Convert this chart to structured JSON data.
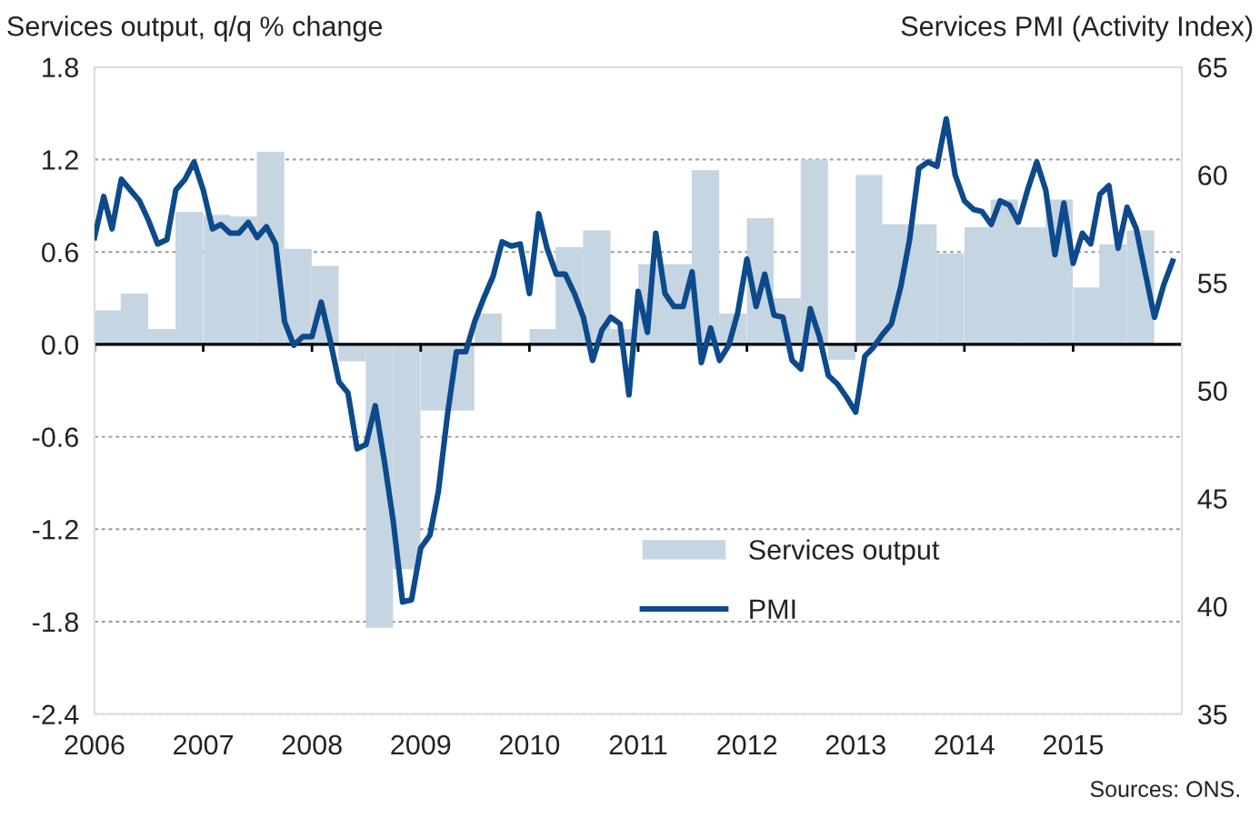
{
  "chart_data": {
    "type": "bar",
    "ylabel": "Services output, q/q % change",
    "y2label": "Services PMI (Activity Index)",
    "annotations": [
      "Sources: ONS."
    ],
    "xlim": [
      "2006-01",
      "2016-01"
    ],
    "xticks": [
      "2006",
      "2007",
      "2008",
      "2009",
      "2010",
      "2011",
      "2012",
      "2013",
      "2014",
      "2015"
    ],
    "ylim": [
      -2.4,
      1.8
    ],
    "yticks": [
      -2.4,
      -1.8,
      -1.2,
      -0.6,
      {
        "value": 0,
        "label": "0.0"
      },
      0.6,
      1.2,
      1.8
    ],
    "y2lim": [
      35,
      65
    ],
    "y2ticks": [
      35,
      40,
      45,
      50,
      55,
      60,
      65
    ],
    "grid": "y",
    "legend": "bottom right",
    "ref_lines": [
      {
        "axis": "y",
        "value": 0,
        "color": "#000000",
        "line_style": "solid"
      }
    ],
    "series": [
      {
        "name": "Services output",
        "color": "#c5d5e2",
        "x": [
          "2006-02-15",
          "2006-05-15",
          "2006-08-15",
          "2006-11-15",
          "2007-02-15",
          "2007-05-15",
          "2007-08-15",
          "2007-11-15",
          "2008-02-15",
          "2008-05-15",
          "2008-08-15",
          "2008-11-15",
          "2009-02-15",
          "2009-05-15",
          "2009-08-15",
          "2009-11-15",
          "2010-02-15",
          "2010-05-15",
          "2010-08-15",
          "2010-11-15",
          "2011-02-15",
          "2011-05-15",
          "2011-08-15",
          "2011-11-15",
          "2012-02-15",
          "2012-05-15",
          "2012-08-15",
          "2012-11-15",
          "2013-02-15",
          "2013-05-15",
          "2013-08-15",
          "2013-11-15",
          "2014-02-15",
          "2014-05-15",
          "2014-08-15",
          "2014-11-15",
          "2015-02-15",
          "2015-05-15",
          "2015-08-15"
        ],
        "values": [
          0.22,
          0.33,
          0.1,
          0.86,
          0.84,
          0.83,
          1.25,
          0.62,
          0.51,
          -0.11,
          -1.84,
          -1.46,
          -0.43,
          -0.43,
          0.2,
          0.0,
          0.1,
          0.63,
          0.74,
          0.1,
          0.52,
          0.52,
          1.13,
          0.2,
          0.82,
          0.3,
          1.2,
          -0.1,
          1.1,
          0.78,
          0.78,
          0.59,
          0.76,
          0.94,
          0.76,
          0.94,
          0.37,
          0.65,
          0.74
        ]
      },
      {
        "name": "PMI",
        "type": "line",
        "axis": "y2",
        "color": "#0d4a8c",
        "line_style": "solid",
        "x": [
          "2006-01",
          "2006-02",
          "2006-03",
          "2006-04",
          "2006-05",
          "2006-06",
          "2006-07",
          "2006-08",
          "2006-09",
          "2006-10",
          "2006-11",
          "2006-12",
          "2007-01",
          "2007-02",
          "2007-03",
          "2007-04",
          "2007-05",
          "2007-06",
          "2007-07",
          "2007-08",
          "2007-09",
          "2007-10",
          "2007-11",
          "2007-12",
          "2008-01",
          "2008-02",
          "2008-03",
          "2008-04",
          "2008-05",
          "2008-06",
          "2008-07",
          "2008-08",
          "2008-09",
          "2008-10",
          "2008-11",
          "2008-12",
          "2009-01",
          "2009-02",
          "2009-03",
          "2009-04",
          "2009-05",
          "2009-06",
          "2009-07",
          "2009-08",
          "2009-09",
          "2009-10",
          "2009-11",
          "2009-12",
          "2010-01",
          "2010-02",
          "2010-03",
          "2010-04",
          "2010-05",
          "2010-06",
          "2010-07",
          "2010-08",
          "2010-09",
          "2010-10",
          "2010-11",
          "2010-12",
          "2011-01",
          "2011-02",
          "2011-03",
          "2011-04",
          "2011-05",
          "2011-06",
          "2011-07",
          "2011-08",
          "2011-09",
          "2011-10",
          "2011-11",
          "2011-12",
          "2012-01",
          "2012-02",
          "2012-03",
          "2012-04",
          "2012-05",
          "2012-06",
          "2012-07",
          "2012-08",
          "2012-09",
          "2012-10",
          "2012-11",
          "2012-12",
          "2013-01",
          "2013-02",
          "2013-03",
          "2013-04",
          "2013-05",
          "2013-06",
          "2013-07",
          "2013-08",
          "2013-09",
          "2013-10",
          "2013-11",
          "2013-12",
          "2014-01",
          "2014-02",
          "2014-03",
          "2014-04",
          "2014-05",
          "2014-06",
          "2014-07",
          "2014-08",
          "2014-09",
          "2014-10",
          "2014-11",
          "2014-12",
          "2015-01",
          "2015-02",
          "2015-03",
          "2015-04",
          "2015-05",
          "2015-06",
          "2015-07",
          "2015-08",
          "2015-09",
          "2015-10",
          "2015-11",
          "2015-12"
        ],
        "values": [
          57.1,
          59.0,
          57.5,
          59.8,
          59.3,
          58.8,
          57.9,
          56.8,
          57.0,
          59.3,
          59.8,
          60.6,
          59.3,
          57.5,
          57.7,
          57.3,
          57.3,
          57.8,
          57.1,
          57.6,
          56.8,
          53.2,
          52.1,
          52.5,
          52.5,
          54.1,
          52.4,
          50.4,
          49.9,
          47.3,
          47.5,
          49.3,
          46.7,
          43.9,
          40.2,
          40.3,
          42.7,
          43.3,
          45.3,
          48.9,
          51.8,
          51.8,
          53.2,
          54.3,
          55.3,
          56.9,
          56.7,
          56.8,
          54.5,
          58.2,
          56.6,
          55.4,
          55.4,
          54.5,
          53.4,
          51.4,
          52.8,
          53.4,
          53.1,
          49.8,
          54.6,
          52.7,
          57.3,
          54.5,
          53.9,
          53.9,
          55.5,
          51.3,
          52.9,
          51.4,
          52.1,
          53.6,
          56.1,
          53.9,
          55.4,
          53.5,
          53.4,
          51.4,
          51.0,
          53.8,
          52.5,
          50.7,
          50.3,
          49.7,
          49.0,
          51.6,
          52.0,
          52.6,
          53.1,
          54.8,
          57.0,
          60.3,
          60.6,
          60.4,
          62.6,
          60.0,
          58.8,
          58.4,
          58.3,
          57.7,
          58.8,
          58.6,
          57.8,
          59.3,
          60.6,
          59.3,
          56.3,
          58.7,
          55.9,
          57.3,
          56.8,
          59.1,
          59.5,
          56.6,
          58.5,
          57.5,
          55.4,
          53.4,
          54.9,
          56.0
        ]
      }
    ]
  }
}
